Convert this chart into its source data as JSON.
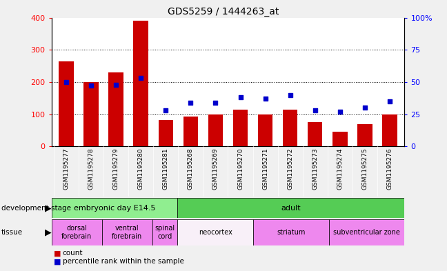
{
  "title": "GDS5259 / 1444263_at",
  "samples": [
    "GSM1195277",
    "GSM1195278",
    "GSM1195279",
    "GSM1195280",
    "GSM1195281",
    "GSM1195268",
    "GSM1195269",
    "GSM1195270",
    "GSM1195271",
    "GSM1195272",
    "GSM1195273",
    "GSM1195274",
    "GSM1195275",
    "GSM1195276"
  ],
  "count_values": [
    265,
    200,
    230,
    390,
    82,
    93,
    100,
    115,
    98,
    115,
    75,
    45,
    68,
    100
  ],
  "percentile_values": [
    50,
    47,
    48,
    53,
    28,
    34,
    34,
    38,
    37,
    40,
    28,
    27,
    30,
    35
  ],
  "ylim_left": [
    0,
    400
  ],
  "ylim_right": [
    0,
    100
  ],
  "yticks_left": [
    0,
    100,
    200,
    300,
    400
  ],
  "yticks_right": [
    0,
    25,
    50,
    75,
    100
  ],
  "bar_color": "#cc0000",
  "dot_color": "#0000cc",
  "dev_stage_groups": [
    {
      "label": "embryonic day E14.5",
      "start": 0,
      "end": 5,
      "color": "#90ee90"
    },
    {
      "label": "adult",
      "start": 5,
      "end": 14,
      "color": "#55cc55"
    }
  ],
  "tissue_groups": [
    {
      "label": "dorsal\nforebrain",
      "start": 0,
      "end": 2,
      "color": "#ee88ee"
    },
    {
      "label": "ventral\nforebrain",
      "start": 2,
      "end": 4,
      "color": "#ee88ee"
    },
    {
      "label": "spinal\ncord",
      "start": 4,
      "end": 5,
      "color": "#ee88ee"
    },
    {
      "label": "neocortex",
      "start": 5,
      "end": 8,
      "color": "#f8f0f8"
    },
    {
      "label": "striatum",
      "start": 8,
      "end": 11,
      "color": "#ee88ee"
    },
    {
      "label": "subventricular zone",
      "start": 11,
      "end": 14,
      "color": "#ee88ee"
    }
  ],
  "xtick_bg": "#c8c8c8",
  "legend_count_label": "count",
  "legend_pct_label": "percentile rank within the sample",
  "bg_color": "#f0f0f0",
  "plot_bg": "#ffffff"
}
